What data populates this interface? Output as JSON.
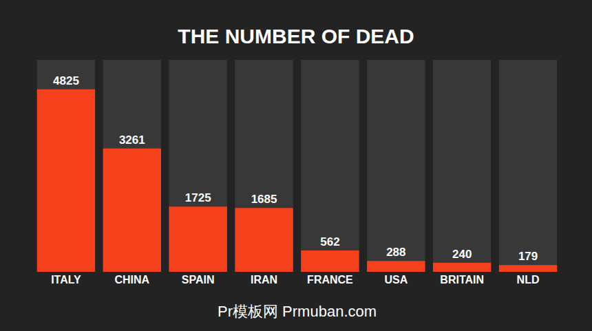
{
  "chart_data": {
    "type": "bar",
    "title": "THE NUMBER OF DEAD",
    "categories": [
      "ITALY",
      "CHINA",
      "SPAIN",
      "IRAN",
      "FRANCE",
      "USA",
      "BRITAIN",
      "NLD"
    ],
    "values": [
      4825,
      3261,
      1725,
      1685,
      562,
      288,
      240,
      179
    ],
    "color": "#f4411b",
    "ylim": [
      0,
      5600
    ],
    "grid": false,
    "data_labels": true,
    "tick_labels": "x",
    "annotations": [
      "Pr模板网 Prmuban.com"
    ]
  }
}
